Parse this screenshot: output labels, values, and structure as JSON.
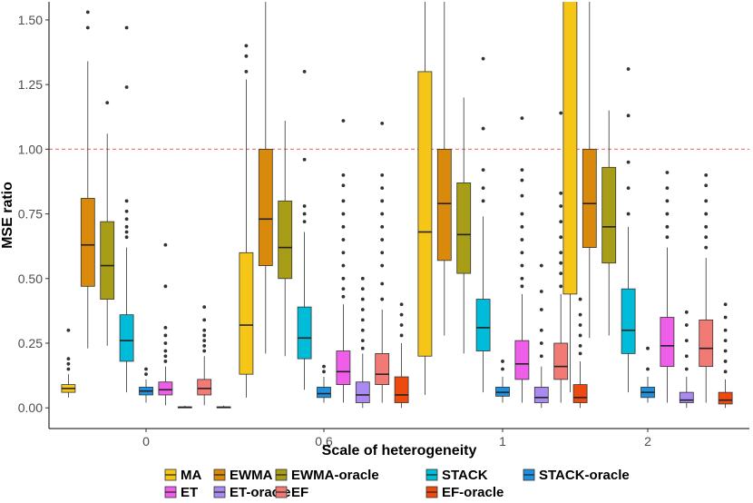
{
  "chart_data": {
    "type": "boxplot",
    "title": "",
    "xlabel": "Scale of heterogeneity",
    "ylabel": "MSE ratio",
    "ylim": [
      -0.08,
      1.57
    ],
    "yticks": [
      0.0,
      0.25,
      0.5,
      0.75,
      1.0,
      1.25,
      1.5
    ],
    "ytick_labels": [
      "0.00",
      "0.25",
      "0.50",
      "0.75",
      "1.00",
      "1.25",
      "1.50"
    ],
    "reference_line": {
      "y": 1.0,
      "color": "#f08080",
      "style": "dashed"
    },
    "grid": false,
    "legend_position": "bottom",
    "categories": [
      "0",
      "0.6",
      "1",
      "2"
    ],
    "series": [
      {
        "name": "MA",
        "color": "#f5c518",
        "boxes": [
          {
            "q1": 0.06,
            "median": 0.075,
            "q3": 0.09,
            "wlo": 0.04,
            "whi": 0.13,
            "outliers": [
              0.15,
              0.17,
              0.19,
              0.3
            ]
          },
          {
            "q1": 0.13,
            "median": 0.32,
            "q3": 0.6,
            "wlo": 0.04,
            "whi": 1.27,
            "outliers": [
              1.3,
              1.36,
              1.4
            ]
          },
          {
            "q1": 0.2,
            "median": 0.68,
            "q3": 1.3,
            "wlo": 0.05,
            "whi": 1.57,
            "outliers": []
          },
          {
            "q1": 0.44,
            "median": 1.6,
            "q3": 1.6,
            "wlo": 0.06,
            "whi": 1.6,
            "outliers": []
          }
        ]
      },
      {
        "name": "EWMA",
        "color": "#d98a0c",
        "boxes": [
          {
            "q1": 0.47,
            "median": 0.63,
            "q3": 0.81,
            "wlo": 0.23,
            "whi": 1.34,
            "outliers": [
              1.47,
              1.53
            ]
          },
          {
            "q1": 0.55,
            "median": 0.73,
            "q3": 1.0,
            "wlo": 0.21,
            "whi": 1.57,
            "outliers": []
          },
          {
            "q1": 0.57,
            "median": 0.79,
            "q3": 1.0,
            "wlo": 0.28,
            "whi": 1.57,
            "outliers": []
          },
          {
            "q1": 0.62,
            "median": 0.79,
            "q3": 1.0,
            "wlo": 0.27,
            "whi": 1.57,
            "outliers": []
          }
        ]
      },
      {
        "name": "EWMA-oracle",
        "color": "#a89d16",
        "boxes": [
          {
            "q1": 0.42,
            "median": 0.55,
            "q3": 0.72,
            "wlo": 0.24,
            "whi": 1.06,
            "outliers": [
              1.18
            ]
          },
          {
            "q1": 0.5,
            "median": 0.62,
            "q3": 0.8,
            "wlo": 0.2,
            "whi": 1.11,
            "outliers": []
          },
          {
            "q1": 0.52,
            "median": 0.67,
            "q3": 0.87,
            "wlo": 0.21,
            "whi": 1.2,
            "outliers": []
          },
          {
            "q1": 0.56,
            "median": 0.7,
            "q3": 0.93,
            "wlo": 0.28,
            "whi": 1.15,
            "outliers": []
          }
        ]
      },
      {
        "name": "STACK",
        "color": "#00bcd8",
        "boxes": [
          {
            "q1": 0.18,
            "median": 0.26,
            "q3": 0.36,
            "wlo": 0.06,
            "whi": 0.62,
            "outliers": [
              0.66,
              0.68,
              0.7,
              0.73,
              0.76,
              0.8,
              1.24,
              1.47
            ]
          },
          {
            "q1": 0.19,
            "median": 0.27,
            "q3": 0.39,
            "wlo": 0.07,
            "whi": 0.68,
            "outliers": [
              0.72,
              0.75,
              0.78,
              0.96,
              1.3
            ]
          },
          {
            "q1": 0.22,
            "median": 0.31,
            "q3": 0.42,
            "wlo": 0.06,
            "whi": 0.74,
            "outliers": [
              0.8,
              0.85,
              0.92,
              1.08,
              1.35
            ]
          },
          {
            "q1": 0.21,
            "median": 0.3,
            "q3": 0.46,
            "wlo": 0.06,
            "whi": 0.7,
            "outliers": [
              0.75,
              0.85,
              0.95,
              1.13,
              1.31
            ]
          }
        ]
      },
      {
        "name": "STACK-oracle",
        "color": "#1e90e0",
        "boxes": [
          {
            "q1": 0.05,
            "median": 0.065,
            "q3": 0.08,
            "wlo": 0.02,
            "whi": 0.11,
            "outliers": [
              0.13,
              0.15
            ]
          },
          {
            "q1": 0.04,
            "median": 0.055,
            "q3": 0.08,
            "wlo": 0.02,
            "whi": 0.12,
            "outliers": [
              0.14,
              0.16
            ]
          },
          {
            "q1": 0.045,
            "median": 0.06,
            "q3": 0.08,
            "wlo": 0.02,
            "whi": 0.12,
            "outliers": [
              0.15,
              0.18
            ]
          },
          {
            "q1": 0.04,
            "median": 0.06,
            "q3": 0.08,
            "wlo": 0.02,
            "whi": 0.12,
            "outliers": [
              0.15,
              0.23
            ]
          }
        ]
      },
      {
        "name": "ET",
        "color": "#ee5ee8",
        "boxes": [
          {
            "q1": 0.05,
            "median": 0.07,
            "q3": 0.1,
            "wlo": 0.01,
            "whi": 0.16,
            "outliers": [
              0.18,
              0.2,
              0.22,
              0.25,
              0.28,
              0.31,
              0.47,
              0.63
            ]
          },
          {
            "q1": 0.09,
            "median": 0.14,
            "q3": 0.22,
            "wlo": 0.02,
            "whi": 0.4,
            "outliers": [
              0.43,
              0.46,
              0.5,
              0.55,
              0.6,
              0.65,
              0.7,
              0.75,
              0.8,
              0.86,
              0.9,
              1.11
            ]
          },
          {
            "q1": 0.11,
            "median": 0.17,
            "q3": 0.26,
            "wlo": 0.02,
            "whi": 0.44,
            "outliers": [
              0.47,
              0.5,
              0.55,
              0.6,
              0.65,
              0.7,
              0.75,
              0.82,
              0.88,
              0.92,
              1.12
            ]
          },
          {
            "q1": 0.16,
            "median": 0.24,
            "q3": 0.35,
            "wlo": 0.02,
            "whi": 0.62,
            "outliers": [
              0.66,
              0.7,
              0.75,
              0.8,
              0.85,
              0.91
            ]
          }
        ]
      },
      {
        "name": "ET-oracle",
        "color": "#a88af0",
        "boxes": [
          {
            "q1": 0.0,
            "median": 0.002,
            "q3": 0.004,
            "wlo": 0.0,
            "whi": 0.008,
            "outliers": []
          },
          {
            "q1": 0.02,
            "median": 0.05,
            "q3": 0.1,
            "wlo": 0.0,
            "whi": 0.21,
            "outliers": [
              0.23,
              0.26,
              0.3,
              0.34,
              0.38,
              0.42,
              0.46,
              0.5
            ]
          },
          {
            "q1": 0.02,
            "median": 0.04,
            "q3": 0.08,
            "wlo": 0.0,
            "whi": 0.16,
            "outliers": [
              0.2,
              0.25,
              0.3,
              0.38,
              0.45,
              0.55
            ]
          },
          {
            "q1": 0.02,
            "median": 0.03,
            "q3": 0.06,
            "wlo": 0.0,
            "whi": 0.12,
            "outliers": [
              0.15,
              0.2,
              0.26,
              0.32,
              0.37
            ]
          }
        ]
      },
      {
        "name": "EF",
        "color": "#f27a75",
        "boxes": [
          {
            "q1": 0.05,
            "median": 0.075,
            "q3": 0.11,
            "wlo": 0.01,
            "whi": 0.2,
            "outliers": [
              0.22,
              0.24,
              0.26,
              0.28,
              0.3,
              0.34,
              0.39
            ]
          },
          {
            "q1": 0.09,
            "median": 0.13,
            "q3": 0.21,
            "wlo": 0.02,
            "whi": 0.38,
            "outliers": [
              0.42,
              0.48,
              0.55,
              0.6,
              0.65,
              0.7,
              0.75,
              0.8,
              0.85,
              0.9,
              1.1
            ]
          },
          {
            "q1": 0.11,
            "median": 0.16,
            "q3": 0.25,
            "wlo": 0.02,
            "whi": 0.44,
            "outliers": [
              0.47,
              0.52,
              0.56,
              0.6,
              0.66,
              0.72,
              0.78,
              0.83,
              1.14
            ]
          },
          {
            "q1": 0.16,
            "median": 0.23,
            "q3": 0.34,
            "wlo": 0.02,
            "whi": 0.58,
            "outliers": [
              0.62,
              0.66,
              0.7,
              0.75,
              0.8,
              0.86,
              0.9
            ]
          }
        ]
      },
      {
        "name": "EF-oracle",
        "color": "#ee4a10",
        "boxes": [
          {
            "q1": 0.0,
            "median": 0.002,
            "q3": 0.004,
            "wlo": 0.0,
            "whi": 0.008,
            "outliers": []
          },
          {
            "q1": 0.02,
            "median": 0.05,
            "q3": 0.12,
            "wlo": 0.0,
            "whi": 0.25,
            "outliers": [
              0.28,
              0.32,
              0.36,
              0.4
            ]
          },
          {
            "q1": 0.02,
            "median": 0.04,
            "q3": 0.09,
            "wlo": 0.0,
            "whi": 0.18,
            "outliers": [
              0.21,
              0.24,
              0.28,
              0.32,
              0.36,
              0.42
            ]
          },
          {
            "q1": 0.015,
            "median": 0.03,
            "q3": 0.06,
            "wlo": 0.0,
            "whi": 0.11,
            "outliers": [
              0.14,
              0.18,
              0.22,
              0.26,
              0.3,
              0.35,
              0.4
            ]
          }
        ]
      }
    ],
    "legend": {
      "rows": [
        [
          "MA",
          "EWMA",
          "EWMA-oracle",
          "STACK",
          "STACK-oracle"
        ],
        [
          "ET",
          "ET-oracle",
          "EF",
          "EF-oracle"
        ]
      ]
    }
  }
}
